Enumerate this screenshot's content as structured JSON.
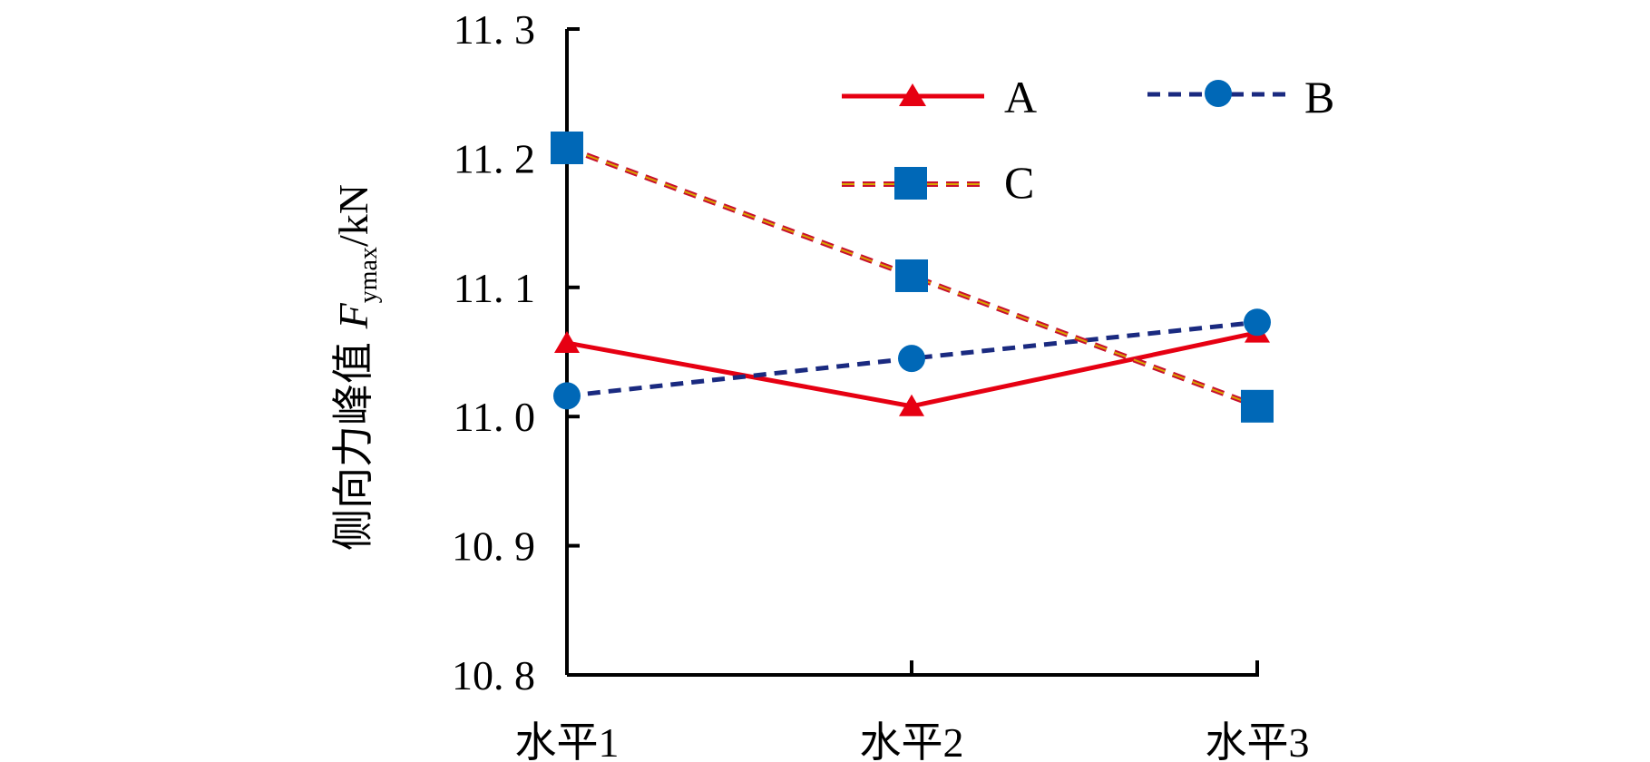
{
  "chart_data": {
    "type": "line",
    "categories": [
      "水平1",
      "水平2",
      "水平3"
    ],
    "ylabel": {
      "prefix": "侧向力峰值 ",
      "variable": "F",
      "subscript": "ymax",
      "unit": "/kN"
    },
    "ylim": [
      10.8,
      11.3
    ],
    "yticks": [
      "10. 8",
      "10. 9",
      "11. 0",
      "11. 1",
      "11. 2",
      "11. 3"
    ],
    "ytick_values": [
      10.8,
      10.9,
      11.0,
      11.1,
      11.2,
      11.3
    ],
    "grid": false,
    "legend_position": "top-right",
    "series": [
      {
        "name": "A",
        "values": [
          11.057,
          11.008,
          11.065
        ],
        "color": "#e60012",
        "marker": "triangle",
        "line": "solid"
      },
      {
        "name": "B",
        "values": [
          11.016,
          11.045,
          11.073
        ],
        "color": "#1a2a80",
        "marker_color": "#0068b7",
        "marker": "circle",
        "line": "dashed"
      },
      {
        "name": "C",
        "values": [
          11.208,
          11.109,
          11.008
        ],
        "color": "#c8102e",
        "dash_color": "#d9a300",
        "marker_color": "#0068b7",
        "marker": "square",
        "line": "dashed-double"
      }
    ]
  }
}
